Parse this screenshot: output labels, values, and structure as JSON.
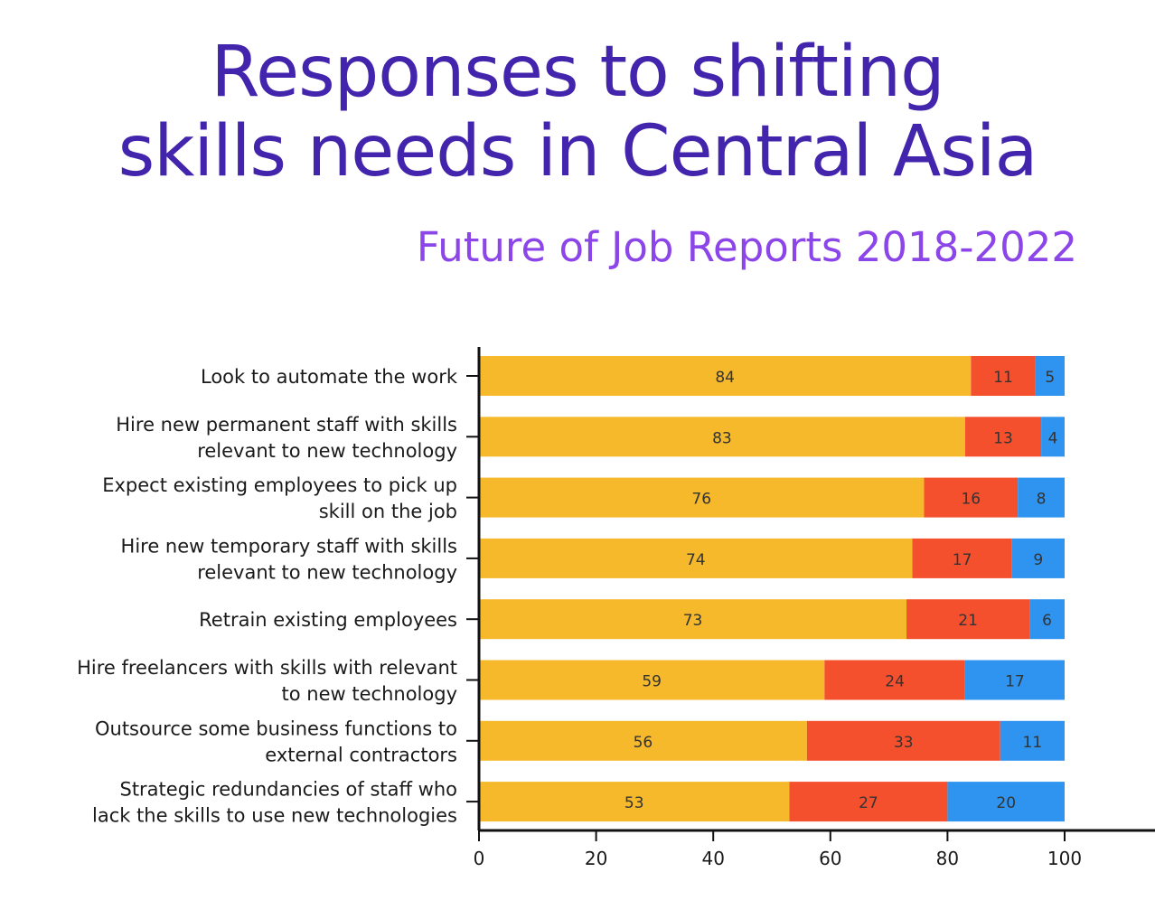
{
  "title_lines": [
    "Responses to shifting",
    "skills needs in Central Asia"
  ],
  "subtitle": "Future of Job Reports 2018-2022",
  "chart_data": {
    "type": "bar",
    "orientation": "horizontal",
    "stacked": true,
    "categories": [
      [
        "Look to automate the work"
      ],
      [
        "Hire new permanent staff with skills",
        "relevant to new technology"
      ],
      [
        "Expect existing employees to pick up",
        "skill on the job"
      ],
      [
        "Hire new temporary staff with skills",
        "relevant to new technology"
      ],
      [
        "Retrain existing employees"
      ],
      [
        "Hire freelancers with skills with relevant",
        "to new technology"
      ],
      [
        "Outsource some business functions to",
        "external contractors"
      ],
      [
        "Strategic redundancies of staff who",
        "lack the skills to use new technologies"
      ]
    ],
    "series": [
      {
        "values": [
          84,
          83,
          76,
          74,
          73,
          59,
          56,
          53
        ],
        "color": "#f6b92b"
      },
      {
        "values": [
          11,
          13,
          16,
          17,
          21,
          24,
          33,
          27
        ],
        "color": "#f5502e"
      },
      {
        "values": [
          5,
          4,
          8,
          9,
          6,
          17,
          11,
          20
        ],
        "color": "#2f94ef"
      }
    ],
    "xlim": [
      0,
      100
    ],
    "xticks": [
      0,
      20,
      40,
      60,
      80,
      100
    ],
    "grid": false,
    "legend": "none"
  }
}
